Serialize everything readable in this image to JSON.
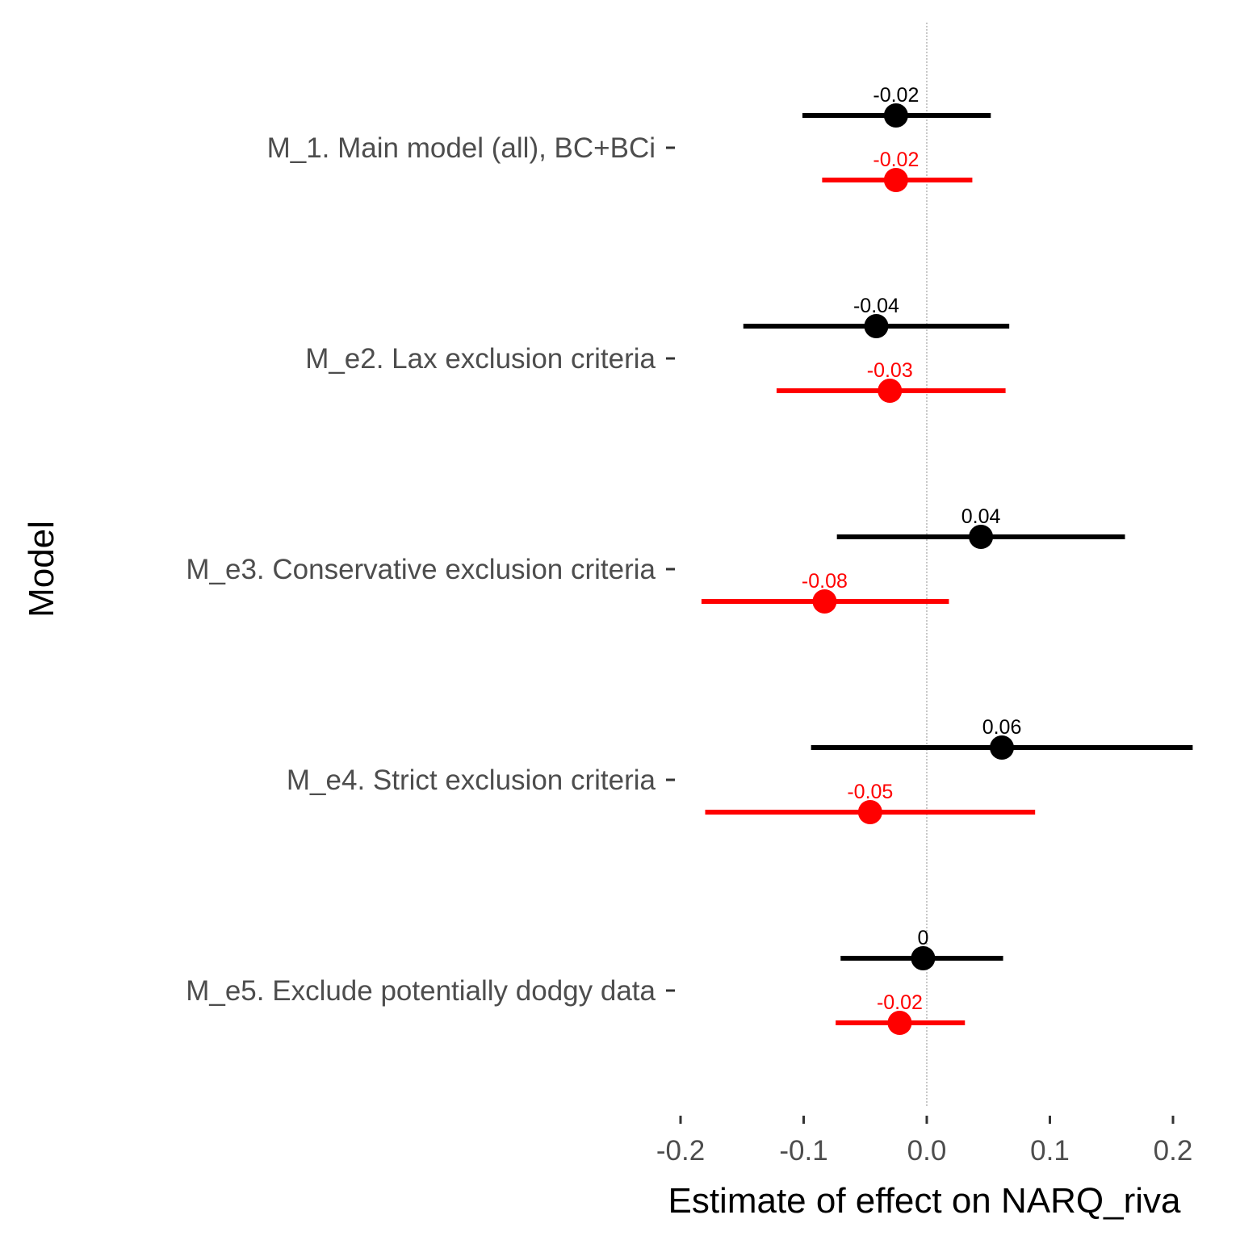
{
  "chart_data": {
    "type": "forest",
    "xlabel": "Estimate of effect on NARQ_riva",
    "ylabel": "Model",
    "xlim": [
      -0.2,
      0.2
    ],
    "x_ticks": [
      -0.2,
      -0.1,
      0.0,
      0.1,
      0.2
    ],
    "x_tick_labels": [
      "-0.2",
      "-0.1",
      "0.0",
      "0.1",
      "0.2"
    ],
    "reference_line": 0,
    "grid": false,
    "categories": [
      "M_1. Main model (all), BC+BCi",
      "M_e2. Lax exclusion criteria",
      "M_e3. Conservative exclusion criteria",
      "M_e4. Strict exclusion criteria",
      "M_e5. Exclude potentially dodgy data"
    ],
    "series": [
      {
        "color": "#000000",
        "estimates": [
          -0.025,
          -0.041,
          0.044,
          0.061,
          -0.003
        ],
        "lower": [
          -0.101,
          -0.149,
          -0.073,
          -0.094,
          -0.07
        ],
        "upper": [
          0.052,
          0.067,
          0.161,
          0.216,
          0.062
        ],
        "labels": [
          "-0.02",
          "-0.04",
          "0.04",
          "0.06",
          "0"
        ]
      },
      {
        "color": "#ff0000",
        "estimates": [
          -0.025,
          -0.03,
          -0.083,
          -0.046,
          -0.022
        ],
        "lower": [
          -0.085,
          -0.122,
          -0.183,
          -0.18,
          -0.074
        ],
        "upper": [
          0.037,
          0.064,
          0.018,
          0.088,
          0.031
        ],
        "labels": [
          "-0.02",
          "-0.03",
          "-0.08",
          "-0.05",
          "-0.02"
        ]
      }
    ]
  }
}
